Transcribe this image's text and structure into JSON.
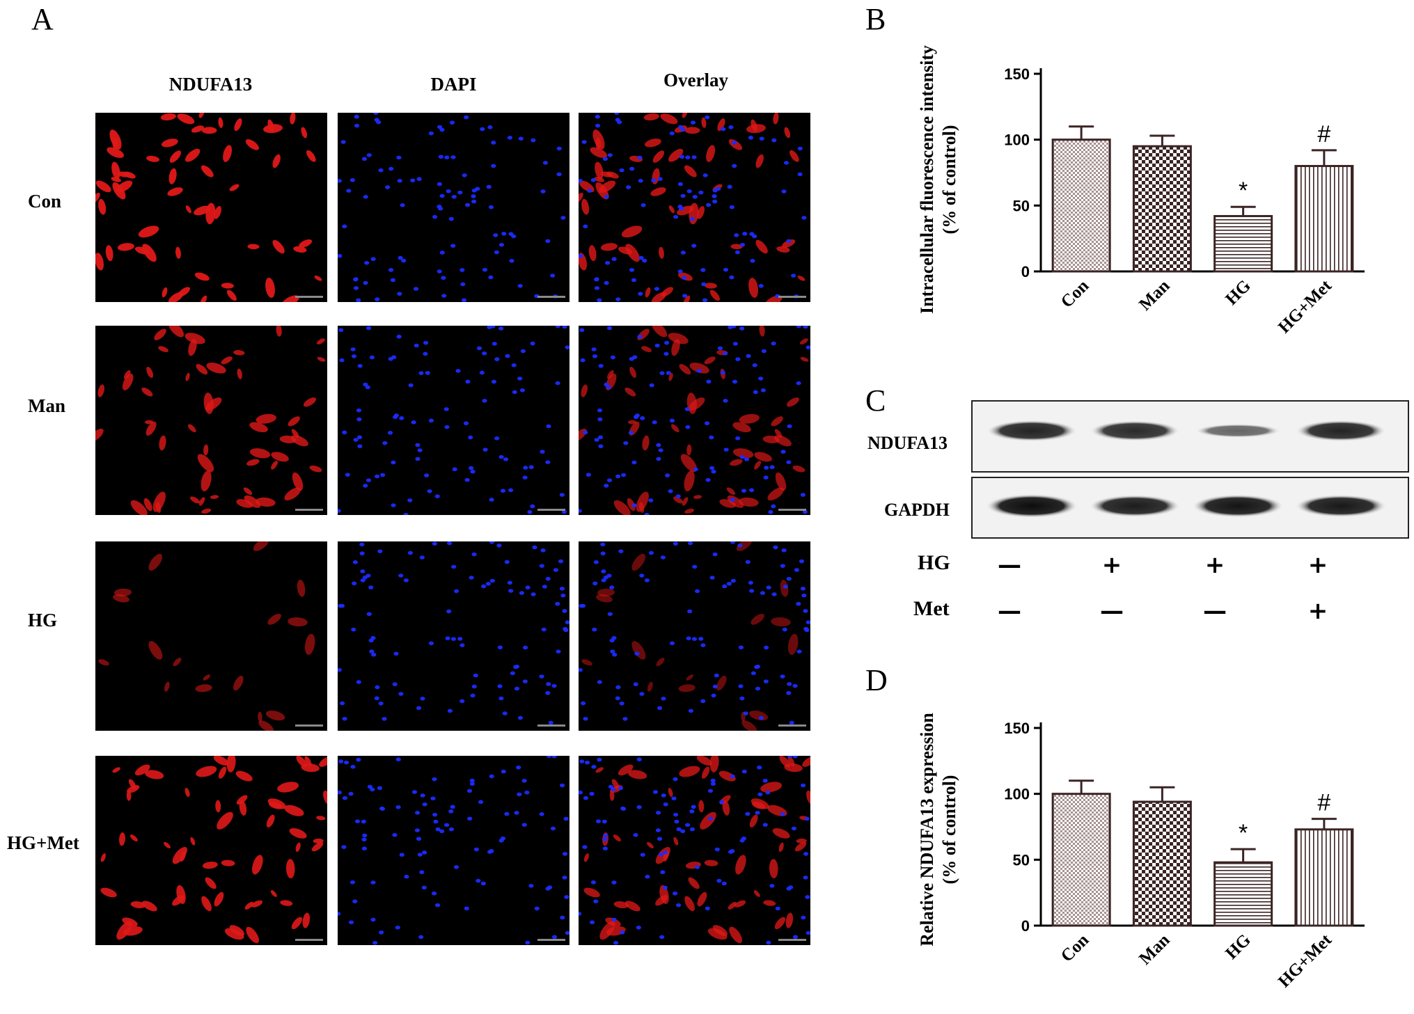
{
  "panels": {
    "a": "A",
    "b": "B",
    "c": "C",
    "d": "D"
  },
  "microscopy": {
    "columns": [
      "NDUFA13",
      "DAPI",
      "Overlay"
    ],
    "rows": [
      "Con",
      "Man",
      "HG",
      "HG+Met"
    ],
    "channel_colors": {
      "ndufa13": "#e01818",
      "dapi": "#1a2cff"
    }
  },
  "western": {
    "bands": [
      {
        "label": "NDUFA13",
        "intensities": [
          0.85,
          0.8,
          0.4,
          0.85
        ]
      },
      {
        "label": "GAPDH",
        "intensities": [
          1.0,
          0.9,
          0.95,
          0.92
        ]
      }
    ],
    "treatments": [
      {
        "label": "HG",
        "signs": [
          "—",
          "+",
          "+",
          "+"
        ]
      },
      {
        "label": "Met",
        "signs": [
          "—",
          "—",
          "—",
          "+"
        ]
      }
    ]
  },
  "chart_data": [
    {
      "type": "bar",
      "ylabel_line1": "Intracellular fluorescence intensity",
      "ylabel_line2": "(% of control)",
      "categories": [
        "Con",
        "Man",
        "HG",
        "HG+Met"
      ],
      "values": [
        100,
        95,
        42,
        80
      ],
      "errors": [
        10,
        8,
        7,
        12
      ],
      "annotations": [
        "",
        "",
        "*",
        "#"
      ],
      "ylim": [
        0,
        150
      ],
      "yticks": [
        0,
        50,
        100,
        150
      ]
    },
    {
      "type": "bar",
      "ylabel_line1": "Relative NDUFA13 expression",
      "ylabel_line2": "(% of control)",
      "categories": [
        "Con",
        "Man",
        "HG",
        "HG+Met"
      ],
      "values": [
        100,
        94,
        48,
        73
      ],
      "errors": [
        10,
        11,
        10,
        8
      ],
      "annotations": [
        "",
        "",
        "*",
        "#"
      ],
      "ylim": [
        0,
        150
      ],
      "yticks": [
        0,
        50,
        100,
        150
      ]
    }
  ]
}
